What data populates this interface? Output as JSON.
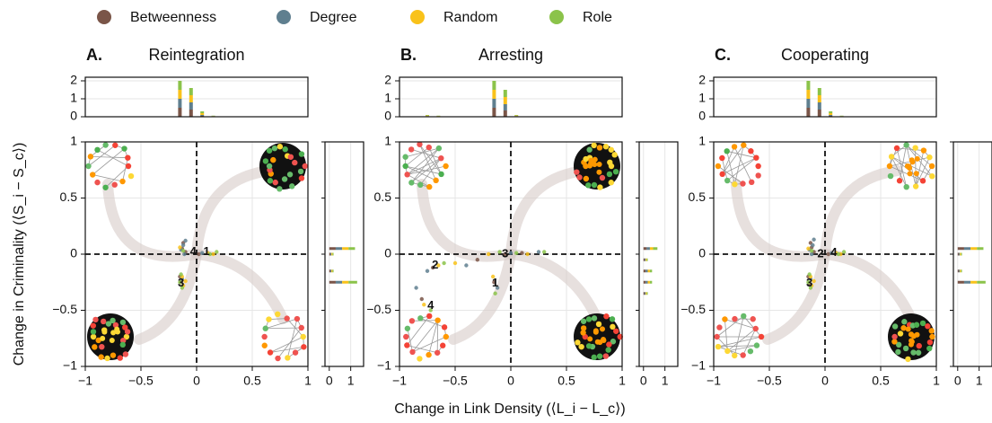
{
  "chart_data": {
    "type": "scatter",
    "series": [
      {
        "name": "Betweenness",
        "color": "#7a5548"
      },
      {
        "name": "Degree",
        "color": "#5f7f8f"
      },
      {
        "name": "Random",
        "color": "#f9c21a"
      },
      {
        "name": "Role",
        "color": "#8bc34a"
      }
    ],
    "x_label": "Change in Link Density (⟨L_i − L_c⟩)",
    "y_label": "Change in Criminality (⟨S_i − S_c⟩)",
    "grid": true,
    "panels": [
      {
        "letter": "A.",
        "title": "Reintegration",
        "xlim": [
          -1,
          1
        ],
        "ylim": [
          -1,
          1
        ],
        "xticks": [
          {
            "value": -1,
            "label": "−1"
          },
          {
            "value": -0.5,
            "label": "−0.5"
          },
          0,
          0.5,
          1
        ],
        "yticks": [
          {
            "value": -1,
            "label": "−1"
          },
          {
            "value": -0.5,
            "label": "−0.5"
          },
          0,
          0.5,
          1
        ],
        "points": [
          {
            "x": [
              -0.13,
              -0.12,
              -0.15,
              -0.14,
              0.02,
              -0.1
            ],
            "y": [
              0.05,
              0.1,
              -0.2,
              -0.25,
              0.0,
              0.02
            ]
          },
          {
            "x": [
              -0.12,
              -0.1,
              -0.13,
              -0.11,
              -0.14,
              0.05
            ],
            "y": [
              0.08,
              0.12,
              -0.22,
              0.0,
              0.04,
              0.01
            ]
          },
          {
            "x": [
              -0.13,
              -0.12,
              -0.15,
              0.1,
              -0.1,
              0.15
            ],
            "y": [
              -0.2,
              -0.28,
              0.06,
              0.01,
              -0.24,
              0.0
            ]
          },
          {
            "x": [
              -0.15,
              -0.13,
              -0.12,
              0.12,
              0.18,
              -0.14
            ],
            "y": [
              -0.25,
              -0.3,
              0.03,
              0.0,
              0.02,
              -0.18
            ]
          }
        ],
        "annotations": [
          {
            "text": "4",
            "x": -0.03,
            "y": 0.02
          },
          {
            "text": "1",
            "x": 0.09,
            "y": 0.02
          },
          {
            "text": "3",
            "x": -0.14,
            "y": -0.26
          }
        ],
        "top_hist": {
          "ylim": [
            0,
            2.2
          ],
          "yticks": [
            0,
            1,
            2
          ],
          "x": [
            -0.15,
            -0.05,
            0.05,
            0.15
          ],
          "values": [
            [
              0.5,
              0.4,
              0.05,
              0.02
            ],
            [
              0.5,
              0.4,
              0.05,
              0.01
            ],
            [
              0.5,
              0.4,
              0.1,
              0.01
            ],
            [
              0.5,
              0.4,
              0.1,
              0.02
            ]
          ]
        },
        "right_hist": {
          "xlim": [
            -0.2,
            1.6
          ],
          "xticks": [
            0,
            1
          ],
          "y": [
            0.05,
            0.0,
            -0.15,
            -0.25
          ],
          "values": [
            [
              0.3,
              0.05,
              0.05,
              0.3
            ],
            [
              0.3,
              0.05,
              0.05,
              0.3
            ],
            [
              0.3,
              0.05,
              0.05,
              0.3
            ],
            [
              0.3,
              0.05,
              0.05,
              0.4
            ]
          ]
        }
      },
      {
        "letter": "B.",
        "title": "Arresting",
        "xlim": [
          -1,
          1
        ],
        "ylim": [
          -1,
          1
        ],
        "xticks": [
          {
            "value": -1,
            "label": "−1"
          },
          {
            "value": -0.5,
            "label": "−0.5"
          },
          0,
          0.5,
          1
        ],
        "yticks": [
          {
            "value": -1,
            "label": "−1"
          },
          {
            "value": -0.5,
            "label": "−0.5"
          },
          0,
          0.5,
          1
        ],
        "points": [
          {
            "x": [
              -0.7,
              -0.8,
              -0.15,
              -0.05,
              0.1,
              -0.3
            ],
            "y": [
              -0.12,
              -0.4,
              -0.25,
              0.0,
              0.01,
              -0.05
            ]
          },
          {
            "x": [
              -0.75,
              -0.85,
              -0.12,
              0.0,
              0.25,
              -0.4
            ],
            "y": [
              -0.15,
              -0.3,
              -0.3,
              0.01,
              0.02,
              -0.1
            ]
          },
          {
            "x": [
              -0.65,
              -0.78,
              -0.16,
              -0.2,
              0.15,
              -0.5
            ],
            "y": [
              -0.1,
              -0.45,
              -0.2,
              0.0,
              0.0,
              -0.08
            ]
          },
          {
            "x": [
              -0.6,
              -0.72,
              -0.14,
              -0.1,
              0.05,
              0.3
            ],
            "y": [
              -0.08,
              -0.5,
              -0.35,
              0.02,
              0.01,
              0.02
            ]
          }
        ],
        "annotations": [
          {
            "text": "2",
            "x": -0.68,
            "y": -0.1
          },
          {
            "text": "1",
            "x": -0.14,
            "y": -0.26
          },
          {
            "text": "4",
            "x": -0.72,
            "y": -0.46
          },
          {
            "text": "3",
            "x": -0.05,
            "y": 0.0
          }
        ],
        "top_hist": {
          "ylim": [
            0,
            2.2
          ],
          "yticks": [
            0,
            1,
            2
          ],
          "x": [
            -0.75,
            -0.65,
            -0.15,
            -0.05,
            0.05
          ],
          "values": [
            [
              0.02,
              0.01,
              0.5,
              0.35,
              0.02
            ],
            [
              0.02,
              0.01,
              0.5,
              0.35,
              0.02
            ],
            [
              0.03,
              0.02,
              0.5,
              0.4,
              0.03
            ],
            [
              0.03,
              0.02,
              0.5,
              0.4,
              0.03
            ]
          ]
        },
        "right_hist": {
          "xlim": [
            -0.2,
            1.6
          ],
          "xticks": [
            0,
            1
          ],
          "y": [
            0.05,
            -0.05,
            -0.15,
            -0.25,
            -0.35
          ],
          "values": [
            [
              0.15,
              0.05,
              0.1,
              0.1,
              0.05
            ],
            [
              0.15,
              0.05,
              0.1,
              0.1,
              0.05
            ],
            [
              0.15,
              0.05,
              0.1,
              0.1,
              0.05
            ],
            [
              0.2,
              0.05,
              0.1,
              0.1,
              0.05
            ]
          ]
        }
      },
      {
        "letter": "C.",
        "title": "Cooperating",
        "xlim": [
          -1,
          1
        ],
        "ylim": [
          -1,
          1
        ],
        "xticks": [
          {
            "value": -1,
            "label": "−1"
          },
          {
            "value": -0.5,
            "label": "−0.5"
          },
          0,
          0.5,
          1
        ],
        "yticks": [
          {
            "value": -1,
            "label": "−1"
          },
          {
            "value": -0.5,
            "label": "−0.5"
          },
          0,
          0.5,
          1
        ],
        "points": [
          {
            "x": [
              -0.12,
              -0.13,
              -0.15,
              -0.14,
              0.03,
              -0.1
            ],
            "y": [
              0.06,
              0.1,
              -0.2,
              -0.26,
              0.0,
              0.02
            ]
          },
          {
            "x": [
              -0.11,
              -0.1,
              -0.13,
              -0.12,
              -0.14,
              0.06
            ],
            "y": [
              0.08,
              0.13,
              -0.22,
              0.0,
              0.04,
              0.01
            ]
          },
          {
            "x": [
              -0.13,
              -0.12,
              -0.15,
              0.1,
              -0.1,
              0.14
            ],
            "y": [
              -0.2,
              -0.28,
              0.05,
              0.01,
              -0.24,
              0.0
            ]
          },
          {
            "x": [
              -0.15,
              -0.13,
              -0.12,
              0.12,
              0.17,
              -0.14
            ],
            "y": [
              -0.25,
              -0.3,
              0.03,
              0.0,
              0.02,
              -0.18
            ]
          }
        ],
        "annotations": [
          {
            "text": "2",
            "x": -0.04,
            "y": 0.0
          },
          {
            "text": "4",
            "x": 0.08,
            "y": 0.01
          },
          {
            "text": "3",
            "x": -0.14,
            "y": -0.26
          }
        ],
        "top_hist": {
          "ylim": [
            0,
            2.2
          ],
          "yticks": [
            0,
            1,
            2
          ],
          "x": [
            -0.15,
            -0.05,
            0.05,
            0.15
          ],
          "values": [
            [
              0.5,
              0.4,
              0.05,
              0.02
            ],
            [
              0.5,
              0.4,
              0.05,
              0.01
            ],
            [
              0.5,
              0.4,
              0.1,
              0.01
            ],
            [
              0.5,
              0.4,
              0.1,
              0.02
            ]
          ]
        },
        "right_hist": {
          "xlim": [
            -0.2,
            1.6
          ],
          "xticks": [
            0,
            1
          ],
          "y": [
            0.05,
            0.0,
            -0.15,
            -0.25
          ],
          "values": [
            [
              0.3,
              0.05,
              0.05,
              0.3
            ],
            [
              0.3,
              0.05,
              0.05,
              0.3
            ],
            [
              0.3,
              0.05,
              0.05,
              0.3
            ],
            [
              0.3,
              0.05,
              0.05,
              0.4
            ]
          ]
        }
      }
    ]
  }
}
